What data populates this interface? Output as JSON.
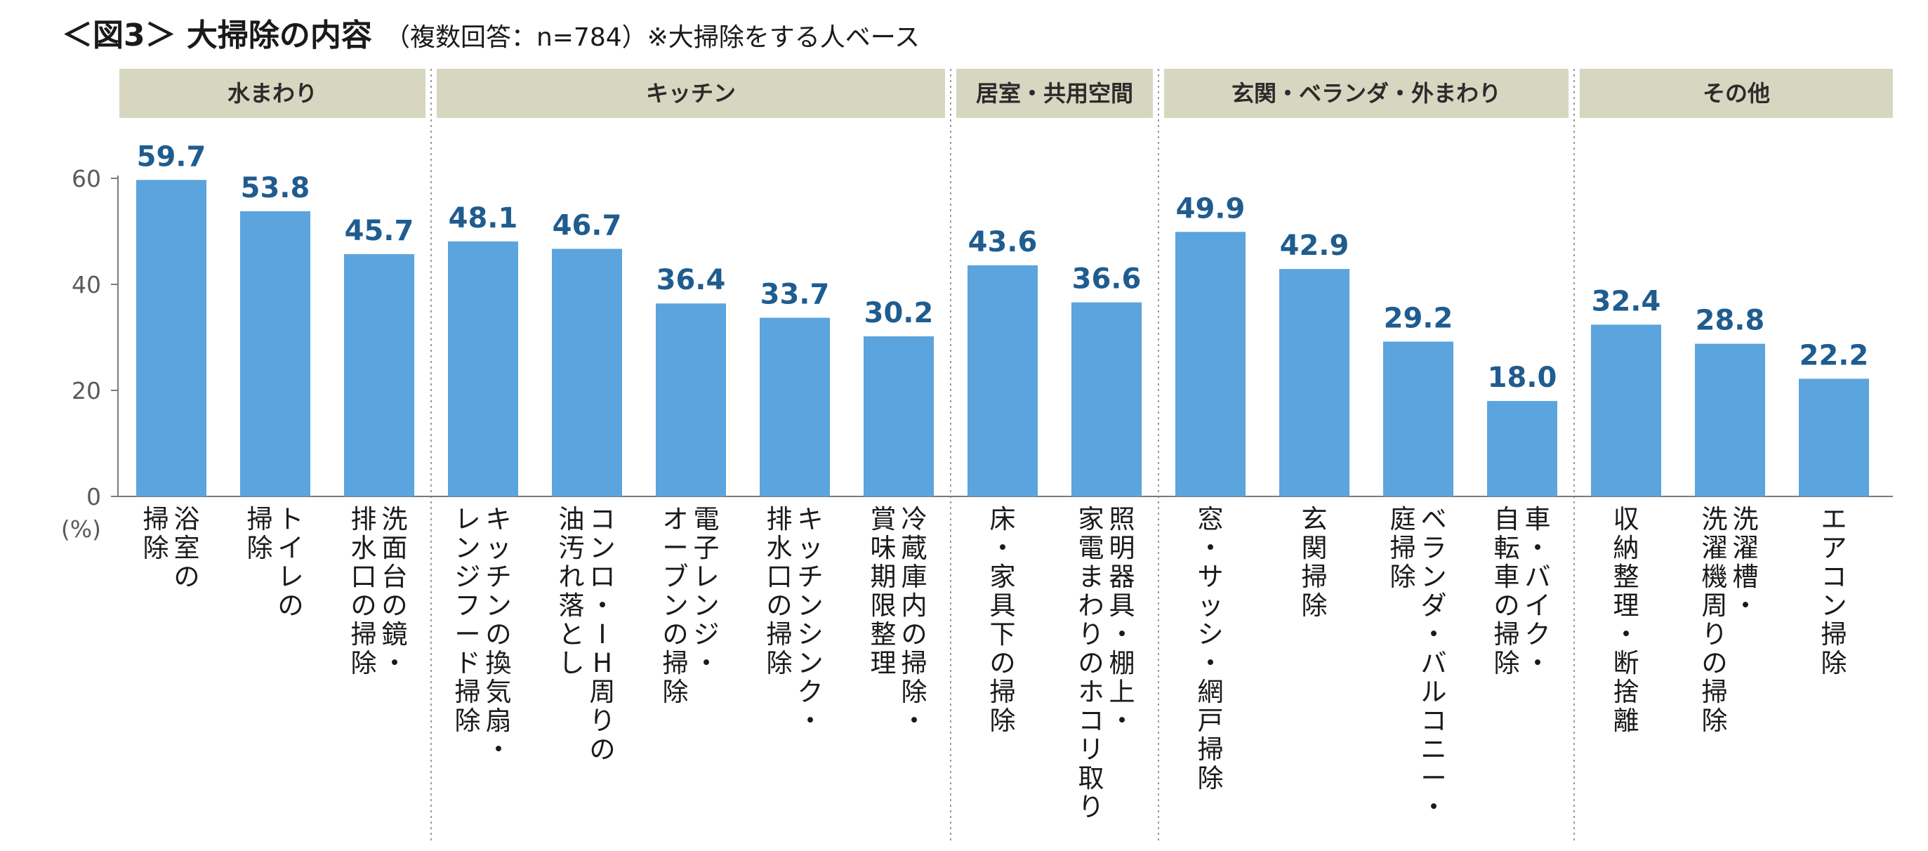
{
  "title": "＜図3＞ 大掃除の内容",
  "subtitle": "（複数回答：n=784）※大掃除をする人ベース",
  "chart_data": {
    "type": "bar",
    "unit_label": "(%)",
    "ylim": [
      0,
      60
    ],
    "yticks": [
      0,
      20,
      40,
      60
    ],
    "grid": false,
    "groups": [
      {
        "name": "水まわり",
        "count": 3
      },
      {
        "name": "キッチン",
        "count": 5
      },
      {
        "name": "居室・共用空間",
        "count": 2
      },
      {
        "name": "玄関・ベランダ・外まわり",
        "count": 4
      },
      {
        "name": "その他",
        "count": 3
      }
    ],
    "categories": [
      [
        "浴室の",
        "掃除"
      ],
      [
        "トイレの",
        "掃除"
      ],
      [
        "洗面台の鏡・",
        "排水口の掃除"
      ],
      [
        "キッチンの換気扇・",
        "レンジフード掃除"
      ],
      [
        "コンロ・IH周りの",
        "油汚れ落とし"
      ],
      [
        "電子レンジ・",
        "オーブンの掃除"
      ],
      [
        "キッチンシンク・",
        "排水口の掃除"
      ],
      [
        "冷蔵庫内の掃除・",
        "賞味期限整理"
      ],
      [
        "床・家具下の掃除"
      ],
      [
        "照明器具・棚上・",
        "家電まわりのホコリ取り"
      ],
      [
        "窓・サッシ・網戸掃除"
      ],
      [
        "玄関掃除"
      ],
      [
        "ベランダ・バルコニー・",
        "庭掃除"
      ],
      [
        "車・バイク・",
        "自転車の掃除"
      ],
      [
        "収納整理・断捨離"
      ],
      [
        "洗濯槽・",
        "洗濯機周りの掃除"
      ],
      [
        "エアコン掃除"
      ]
    ],
    "values": [
      59.7,
      53.8,
      45.7,
      48.1,
      46.7,
      36.4,
      33.7,
      30.2,
      43.6,
      36.6,
      49.9,
      42.9,
      29.2,
      18.0,
      32.4,
      28.8,
      22.2
    ],
    "value_labels": [
      "59.7",
      "53.8",
      "45.7",
      "48.1",
      "46.7",
      "36.4",
      "33.7",
      "30.2",
      "43.6",
      "36.6",
      "49.9",
      "42.9",
      "29.2",
      "18.0",
      "32.4",
      "28.8",
      "22.2"
    ],
    "colors": {
      "bar": "#5ba4dd",
      "value_label": "#1f5c8f",
      "group_band": "#d7d7c1"
    }
  }
}
